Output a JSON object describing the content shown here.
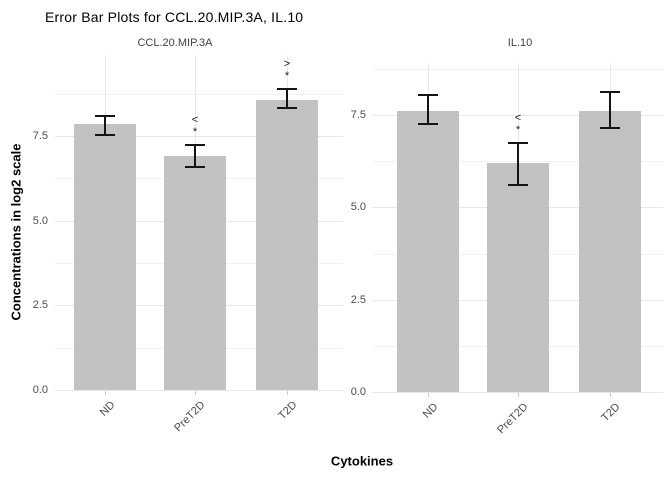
{
  "title": "Error Bar Plots for CCL.20.MIP.3A, IL.10",
  "x_axis_title": "Cytokines",
  "y_axis_title": "Concentrations in log2 scale",
  "chart_data": {
    "type": "bar",
    "categories": [
      "ND",
      "PreT2D",
      "T2D"
    ],
    "y_tick_labels": [
      "0.0",
      "2.5",
      "5.0",
      "7.5"
    ],
    "y_tick_values": [
      0,
      2.5,
      5,
      7.5
    ],
    "y_minor_values": [
      1.25,
      3.75,
      6.25,
      8.75
    ],
    "grid": true,
    "legend": "none",
    "bar_color": "#c2c2c2",
    "error_color": "#141414",
    "panels": [
      {
        "title": "CCL.20.MIP.3A",
        "ylim": [
          0,
          9.9
        ],
        "series": [
          {
            "category": "ND",
            "value": 7.85,
            "error_low": 7.53,
            "error_high": 8.09
          },
          {
            "category": "PreT2D",
            "value": 6.9,
            "error_low": 6.58,
            "error_high": 7.23
          },
          {
            "category": "T2D",
            "value": 8.55,
            "error_low": 8.33,
            "error_high": 8.89
          }
        ],
        "annotations": [
          {
            "category": "PreT2D",
            "lines": [
              "<",
              "*"
            ]
          },
          {
            "category": "T2D",
            "lines": [
              ">",
              "*"
            ]
          }
        ]
      },
      {
        "title": "IL.10",
        "ylim": [
          0,
          8.9
        ],
        "series": [
          {
            "category": "ND",
            "value": 7.62,
            "error_low": 7.26,
            "error_high": 8.04
          },
          {
            "category": "PreT2D",
            "value": 6.2,
            "error_low": 5.61,
            "error_high": 6.74
          },
          {
            "category": "T2D",
            "value": 7.62,
            "error_low": 7.15,
            "error_high": 8.12
          }
        ],
        "annotations": [
          {
            "category": "PreT2D",
            "lines": [
              "<",
              "*"
            ]
          }
        ]
      }
    ]
  }
}
